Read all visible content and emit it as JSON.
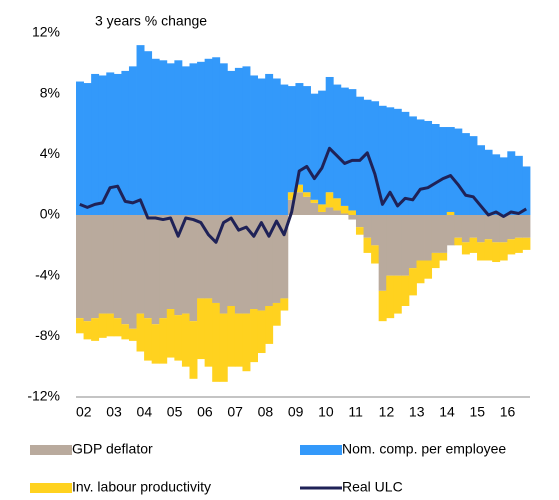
{
  "chart_data": {
    "type": "bar",
    "stacked": true,
    "subtitle": "3 years % change",
    "categories": [
      "02",
      null,
      null,
      null,
      "03",
      null,
      null,
      null,
      "04",
      null,
      null,
      null,
      "05",
      null,
      null,
      null,
      "06",
      null,
      null,
      null,
      "07",
      null,
      null,
      null,
      "08",
      null,
      null,
      null,
      "09",
      null,
      null,
      null,
      "10",
      null,
      null,
      null,
      "11",
      null,
      null,
      null,
      "12",
      null,
      null,
      null,
      "13",
      null,
      null,
      null,
      "14",
      null,
      null,
      null,
      "15",
      null,
      null,
      null,
      "16",
      null,
      null,
      null
    ],
    "ylim": [
      -12,
      12
    ],
    "yticks": [
      {
        "value": -12,
        "label": "-12%"
      },
      {
        "value": -8,
        "label": "-8%"
      },
      {
        "value": -4,
        "label": "-4%"
      },
      {
        "value": 0,
        "label": "0%"
      },
      {
        "value": 4,
        "label": "4%"
      },
      {
        "value": 8,
        "label": "8%"
      },
      {
        "value": 12,
        "label": "12%"
      }
    ],
    "grid": false,
    "series": [
      {
        "name": "GDP deflator",
        "color": "#b9aa9d",
        "type": "bar",
        "values": [
          -6.8,
          -7.0,
          -6.8,
          -6.5,
          -6.5,
          -6.8,
          -7.2,
          -7.5,
          -6.5,
          -6.8,
          -7.2,
          -6.8,
          -6.2,
          -6.6,
          -6.5,
          -7.0,
          -5.5,
          -5.5,
          -5.8,
          -6.5,
          -6.0,
          -6.5,
          -6.5,
          -6.2,
          -6.3,
          -6.0,
          -5.8,
          -5.5,
          1.0,
          1.5,
          1.2,
          0.8,
          0.2,
          0.5,
          0.3,
          0.1,
          -0.3,
          -0.8,
          -1.5,
          -2.0,
          -5.0,
          -4.0,
          -4.0,
          -4.0,
          -3.5,
          -3.0,
          -3.0,
          -2.5,
          -2.5,
          -2.0,
          -1.5,
          -1.8,
          -1.5,
          -1.8,
          -1.6,
          -1.8,
          -1.8,
          -1.6,
          -1.5,
          -1.5
        ]
      },
      {
        "name": "Inv. labour productivity",
        "color": "#ffd21f",
        "type": "bar",
        "values": [
          -1.0,
          -1.2,
          -1.5,
          -1.6,
          -1.5,
          -1.2,
          -1.0,
          -0.8,
          -2.5,
          -2.8,
          -2.6,
          -3.0,
          -3.2,
          -3.0,
          -3.5,
          -3.8,
          -4.0,
          -4.5,
          -5.2,
          -4.5,
          -4.0,
          -3.5,
          -3.8,
          -3.5,
          -2.8,
          -2.5,
          -1.5,
          -0.8,
          0.5,
          0.5,
          0.3,
          0.2,
          0.5,
          1.0,
          0.8,
          0.5,
          0.3,
          -0.5,
          -1.0,
          -1.2,
          -2.0,
          -2.8,
          -2.5,
          -2.0,
          -1.8,
          -1.5,
          -1.2,
          -1.0,
          -0.5,
          0.2,
          -0.5,
          -0.8,
          -1.0,
          -1.2,
          -1.4,
          -1.3,
          -1.2,
          -1.0,
          -1.0,
          -0.8
        ]
      },
      {
        "name": "Nom. comp. per employee",
        "color": "#3399fa",
        "type": "bar",
        "values": [
          8.8,
          8.7,
          9.3,
          9.2,
          9.4,
          9.3,
          9.5,
          9.8,
          11.2,
          10.8,
          10.3,
          10.2,
          10.0,
          10.2,
          9.8,
          10.0,
          10.1,
          10.3,
          10.4,
          10.0,
          9.5,
          9.7,
          9.8,
          9.2,
          9.0,
          9.3,
          9.0,
          8.6,
          7.0,
          6.7,
          7.0,
          7.0,
          7.5,
          7.6,
          7.5,
          7.8,
          8.0,
          7.8,
          7.6,
          7.5,
          7.2,
          7.1,
          7.0,
          6.8,
          6.5,
          6.3,
          6.2,
          6.0,
          5.8,
          5.6,
          5.7,
          5.4,
          5.2,
          4.6,
          4.3,
          4.0,
          3.8,
          4.2,
          3.9,
          3.2
        ]
      },
      {
        "name": "Real ULC",
        "color": "#1f2257",
        "type": "line",
        "values": [
          0.7,
          0.5,
          0.7,
          0.8,
          1.8,
          1.9,
          0.9,
          0.8,
          1.0,
          -0.2,
          -0.2,
          -0.3,
          -0.2,
          -1.4,
          -0.2,
          -0.3,
          -0.5,
          -1.3,
          -1.8,
          -0.5,
          -0.2,
          -1.0,
          -0.8,
          -1.4,
          -0.5,
          -1.4,
          -0.4,
          -1.3,
          0.2,
          2.9,
          3.2,
          2.4,
          3.1,
          4.4,
          3.9,
          3.4,
          3.6,
          3.6,
          4.1,
          2.7,
          0.7,
          1.5,
          0.6,
          1.1,
          1.0,
          1.7,
          1.8,
          2.1,
          2.4,
          2.6,
          2.0,
          1.3,
          1.2,
          0.6,
          0.0,
          0.2,
          -0.1,
          0.2,
          0.1,
          0.4
        ]
      }
    ]
  }
}
